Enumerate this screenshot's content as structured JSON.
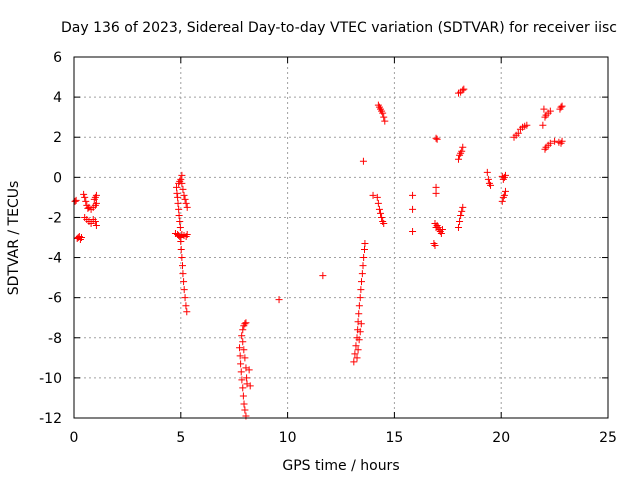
{
  "chart_data": {
    "type": "scatter",
    "title": "Day 136 of 2023, Sidereal Day-to-day VTEC variation (SDTVAR) for receiver iisc",
    "xlabel": "GPS time / hours",
    "ylabel": "SDTVAR / TECUs",
    "xlim": [
      0,
      25
    ],
    "ylim": [
      -12,
      6
    ],
    "xticks": [
      0,
      5,
      10,
      15,
      20,
      25
    ],
    "yticks": [
      -12,
      -10,
      -8,
      -6,
      -4,
      -2,
      0,
      2,
      4,
      6
    ],
    "xtick_labels": [
      "0",
      "5",
      "10",
      "15",
      "20",
      "25"
    ],
    "ytick_labels": [
      "-12",
      "-10",
      "-8",
      "-6",
      "-4",
      "-2",
      "0",
      "2",
      "4",
      "6"
    ],
    "grid": true,
    "marker": "plus",
    "color": "#ff0000",
    "points": [
      [
        0.05,
        -1.2
      ],
      [
        0.1,
        -1.15
      ],
      [
        0.15,
        -3.05
      ],
      [
        0.2,
        -3.0
      ],
      [
        0.25,
        -2.95
      ],
      [
        0.3,
        -3.1
      ],
      [
        0.35,
        -3.0
      ],
      [
        0.45,
        -0.85
      ],
      [
        0.5,
        -1.0
      ],
      [
        0.55,
        -1.2
      ],
      [
        0.6,
        -1.4
      ],
      [
        0.65,
        -1.55
      ],
      [
        0.7,
        -1.5
      ],
      [
        0.8,
        -1.6
      ],
      [
        0.9,
        -1.5
      ],
      [
        1.0,
        -1.4
      ],
      [
        1.05,
        -1.3
      ],
      [
        0.5,
        -2.0
      ],
      [
        0.6,
        -2.1
      ],
      [
        0.7,
        -2.2
      ],
      [
        0.8,
        -2.3
      ],
      [
        0.9,
        -2.1
      ],
      [
        1.0,
        -2.2
      ],
      [
        1.05,
        -2.4
      ],
      [
        1.0,
        -1.0
      ],
      [
        1.05,
        -0.9
      ],
      [
        0.95,
        -1.1
      ],
      [
        4.75,
        -2.8
      ],
      [
        4.85,
        -2.85
      ],
      [
        4.9,
        -2.9
      ],
      [
        4.95,
        -2.95
      ],
      [
        5.0,
        -3.0
      ],
      [
        5.05,
        -2.85
      ],
      [
        5.15,
        -2.9
      ],
      [
        5.25,
        -2.95
      ],
      [
        5.3,
        -2.85
      ],
      [
        4.8,
        -0.5
      ],
      [
        4.82,
        -0.8
      ],
      [
        4.85,
        -1.0
      ],
      [
        4.87,
        -1.3
      ],
      [
        4.9,
        -1.6
      ],
      [
        4.92,
        -1.9
      ],
      [
        4.95,
        -2.2
      ],
      [
        4.98,
        -2.5
      ],
      [
        4.9,
        -0.3
      ],
      [
        4.95,
        -0.2
      ],
      [
        5.0,
        -0.1
      ],
      [
        5.05,
        0.1
      ],
      [
        5.05,
        -0.3
      ],
      [
        5.1,
        -0.6
      ],
      [
        5.15,
        -0.9
      ],
      [
        5.2,
        -1.1
      ],
      [
        5.25,
        -1.3
      ],
      [
        5.3,
        -1.5
      ],
      [
        5.0,
        -3.2
      ],
      [
        5.02,
        -3.6
      ],
      [
        5.05,
        -4.0
      ],
      [
        5.08,
        -4.4
      ],
      [
        5.1,
        -4.8
      ],
      [
        5.13,
        -5.2
      ],
      [
        5.16,
        -5.6
      ],
      [
        5.2,
        -6.0
      ],
      [
        5.24,
        -6.4
      ],
      [
        5.28,
        -6.7
      ],
      [
        7.75,
        -8.5
      ],
      [
        7.78,
        -8.9
      ],
      [
        7.8,
        -9.3
      ],
      [
        7.83,
        -9.7
      ],
      [
        7.86,
        -10.1
      ],
      [
        7.9,
        -10.5
      ],
      [
        7.93,
        -10.9
      ],
      [
        7.96,
        -11.3
      ],
      [
        8.0,
        -11.6
      ],
      [
        8.05,
        -11.9
      ],
      [
        7.85,
        -7.9
      ],
      [
        7.9,
        -7.6
      ],
      [
        7.95,
        -7.4
      ],
      [
        8.0,
        -7.3
      ],
      [
        8.05,
        -7.25
      ],
      [
        7.9,
        -8.2
      ],
      [
        7.95,
        -8.6
      ],
      [
        8.0,
        -9.0
      ],
      [
        8.05,
        -9.5
      ],
      [
        8.08,
        -10.0
      ],
      [
        8.1,
        -10.3
      ],
      [
        8.2,
        -9.6
      ],
      [
        8.25,
        -10.4
      ],
      [
        9.6,
        -6.1
      ],
      [
        11.65,
        -4.9
      ],
      [
        13.1,
        -9.2
      ],
      [
        13.15,
        -8.8
      ],
      [
        13.2,
        -8.4
      ],
      [
        13.25,
        -8.0
      ],
      [
        13.28,
        -7.6
      ],
      [
        13.3,
        -7.2
      ],
      [
        13.33,
        -6.8
      ],
      [
        13.36,
        -6.4
      ],
      [
        13.4,
        -6.0
      ],
      [
        13.43,
        -5.6
      ],
      [
        13.46,
        -5.2
      ],
      [
        13.5,
        -4.8
      ],
      [
        13.53,
        -4.4
      ],
      [
        13.56,
        -4.0
      ],
      [
        13.6,
        -3.6
      ],
      [
        13.62,
        -3.3
      ],
      [
        13.25,
        -9.0
      ],
      [
        13.3,
        -8.6
      ],
      [
        13.35,
        -8.1
      ],
      [
        13.4,
        -7.7
      ],
      [
        13.45,
        -7.3
      ],
      [
        13.55,
        0.8
      ],
      [
        14.0,
        -0.9
      ],
      [
        14.2,
        -1.0
      ],
      [
        14.25,
        -1.3
      ],
      [
        14.3,
        -1.6
      ],
      [
        14.35,
        -1.8
      ],
      [
        14.4,
        -2.0
      ],
      [
        14.45,
        -2.2
      ],
      [
        14.5,
        -2.3
      ],
      [
        14.25,
        3.6
      ],
      [
        14.3,
        3.5
      ],
      [
        14.35,
        3.4
      ],
      [
        14.4,
        3.3
      ],
      [
        14.45,
        3.2
      ],
      [
        14.5,
        3.0
      ],
      [
        14.55,
        2.8
      ],
      [
        15.85,
        -0.9
      ],
      [
        15.85,
        -1.6
      ],
      [
        15.85,
        -2.7
      ],
      [
        16.85,
        -3.3
      ],
      [
        16.9,
        -3.4
      ],
      [
        16.95,
        -2.5
      ],
      [
        16.95,
        1.95
      ],
      [
        17.0,
        1.9
      ],
      [
        16.95,
        -0.5
      ],
      [
        16.95,
        -0.8
      ],
      [
        16.9,
        -2.3
      ],
      [
        17.0,
        -2.4
      ],
      [
        17.05,
        -2.5
      ],
      [
        17.1,
        -2.6
      ],
      [
        17.15,
        -2.7
      ],
      [
        17.2,
        -2.8
      ],
      [
        17.25,
        -2.6
      ],
      [
        18.0,
        -2.5
      ],
      [
        18.05,
        -2.2
      ],
      [
        18.1,
        -1.9
      ],
      [
        18.15,
        -1.7
      ],
      [
        18.2,
        -1.5
      ],
      [
        18.0,
        0.9
      ],
      [
        18.05,
        1.1
      ],
      [
        18.1,
        1.2
      ],
      [
        18.15,
        1.3
      ],
      [
        18.2,
        1.5
      ],
      [
        18.0,
        4.2
      ],
      [
        18.1,
        4.25
      ],
      [
        18.2,
        4.35
      ],
      [
        18.25,
        4.4
      ],
      [
        19.35,
        0.25
      ],
      [
        19.4,
        -0.1
      ],
      [
        19.45,
        -0.3
      ],
      [
        19.5,
        -0.4
      ],
      [
        20.05,
        -1.2
      ],
      [
        20.1,
        -1.0
      ],
      [
        20.15,
        -0.9
      ],
      [
        20.2,
        -0.7
      ],
      [
        20.1,
        -0.1
      ],
      [
        20.15,
        0.0
      ],
      [
        20.2,
        0.1
      ],
      [
        20.05,
        0.05
      ],
      [
        20.6,
        2.0
      ],
      [
        20.7,
        2.1
      ],
      [
        20.8,
        2.2
      ],
      [
        20.9,
        2.4
      ],
      [
        21.0,
        2.5
      ],
      [
        21.1,
        2.55
      ],
      [
        21.2,
        2.6
      ],
      [
        21.95,
        2.6
      ],
      [
        22.0,
        3.4
      ],
      [
        22.05,
        3.0
      ],
      [
        22.1,
        3.1
      ],
      [
        22.2,
        3.2
      ],
      [
        22.3,
        3.3
      ],
      [
        22.05,
        1.4
      ],
      [
        22.1,
        1.5
      ],
      [
        22.2,
        1.6
      ],
      [
        22.3,
        1.7
      ],
      [
        22.5,
        1.8
      ],
      [
        22.7,
        1.75
      ],
      [
        22.8,
        1.7
      ],
      [
        22.85,
        1.8
      ],
      [
        22.75,
        3.4
      ],
      [
        22.8,
        3.5
      ],
      [
        22.85,
        3.55
      ]
    ]
  }
}
